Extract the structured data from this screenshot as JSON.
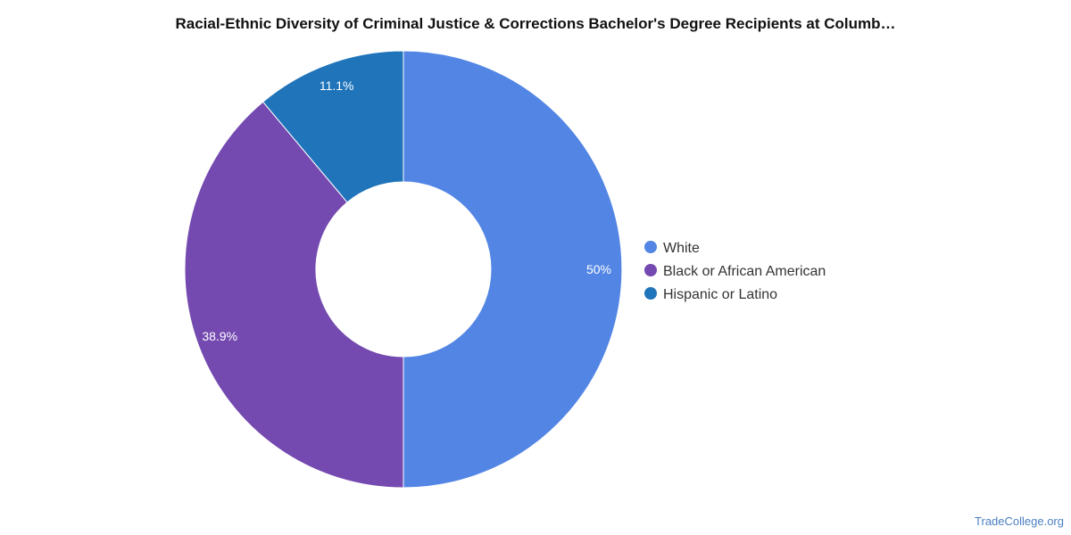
{
  "chart_data": {
    "type": "pie",
    "variant": "donut",
    "title": "Racial-Ethnic Diversity of Criminal Justice & Corrections Bachelor's Degree Recipients at Columb…",
    "categories": [
      "White",
      "Black or African American",
      "Hispanic or Latino"
    ],
    "values": [
      50,
      38.9,
      11.1
    ],
    "value_labels": [
      "50%",
      "38.9%",
      "11.1%"
    ],
    "colors": [
      "#5285e4",
      "#7449b0",
      "#1f74ba"
    ],
    "legend_placement": "right"
  },
  "watermark": "TradeCollege.org"
}
